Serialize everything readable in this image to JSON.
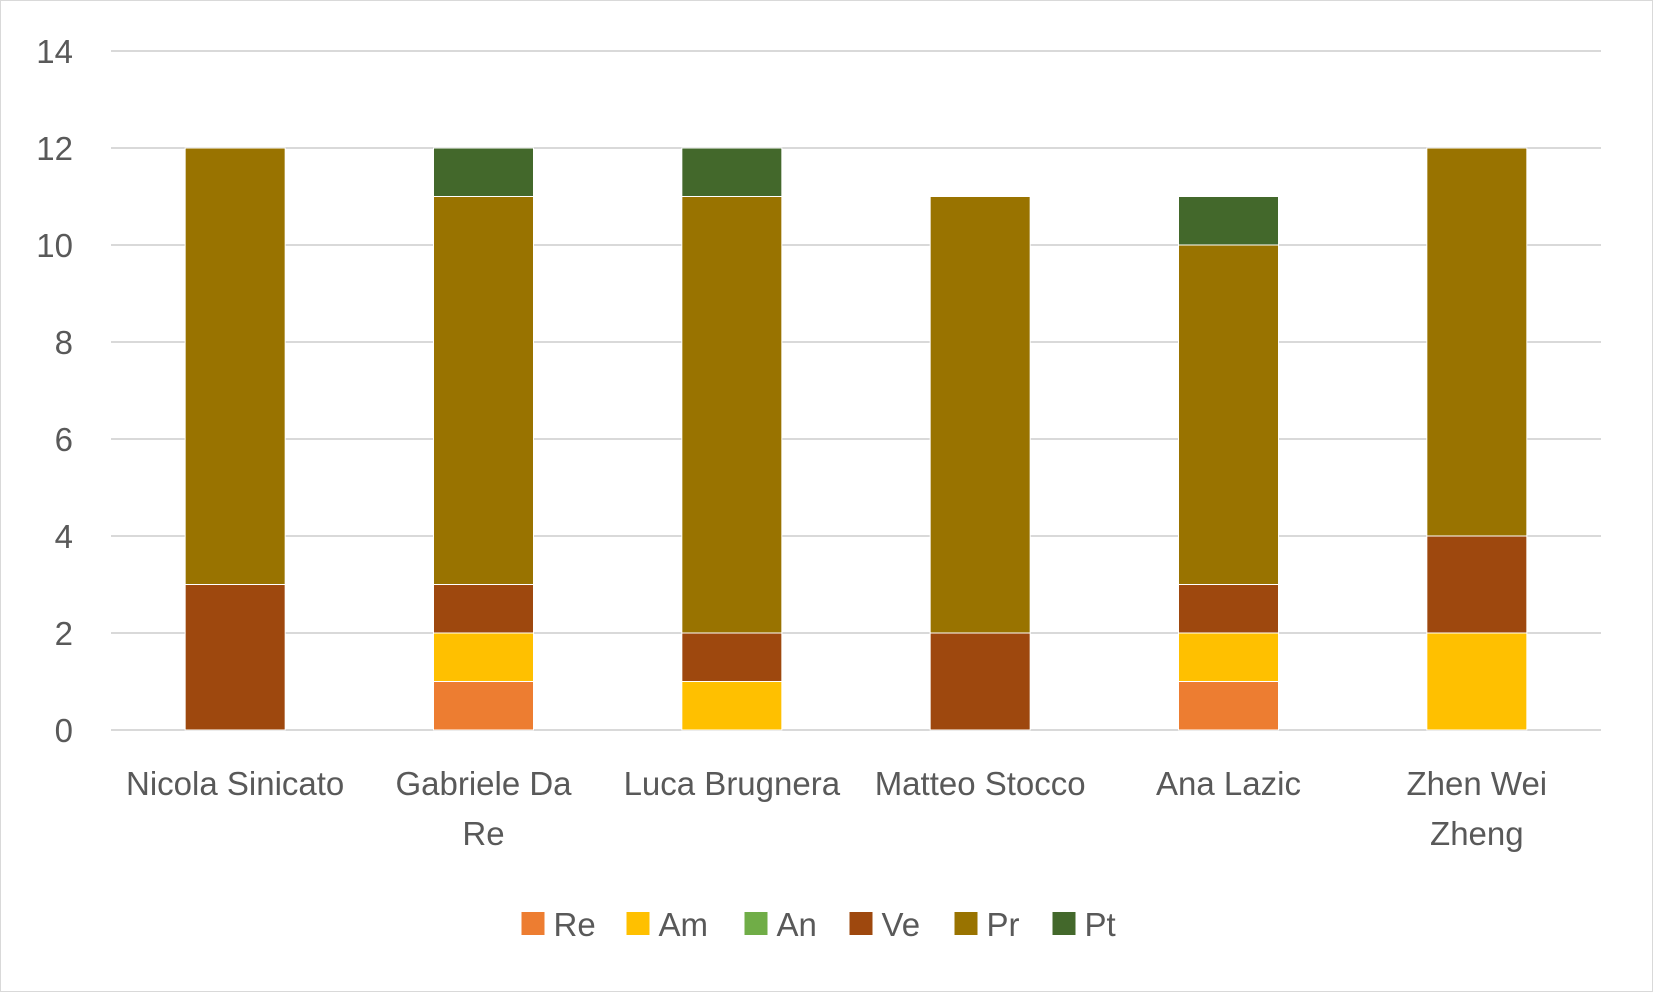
{
  "chart_data": {
    "type": "bar",
    "stacked": true,
    "categories": [
      [
        "Nicola Sinicato"
      ],
      [
        "Gabriele Da",
        "Re"
      ],
      [
        "Luca Brugnera"
      ],
      [
        "Matteo Stocco"
      ],
      [
        "Ana Lazic"
      ],
      [
        "Zhen Wei",
        "Zheng"
      ]
    ],
    "series": [
      {
        "name": "Re",
        "color": "#ED7D31",
        "values": [
          0,
          1,
          0,
          0,
          1,
          0
        ]
      },
      {
        "name": "Am",
        "color": "#FFC000",
        "values": [
          0,
          1,
          1,
          0,
          1,
          2
        ]
      },
      {
        "name": "An",
        "color": "#70AD47",
        "values": [
          0,
          0,
          0,
          0,
          0,
          0
        ]
      },
      {
        "name": "Ve",
        "color": "#9E480E",
        "values": [
          3,
          1,
          1,
          2,
          1,
          2
        ]
      },
      {
        "name": "Pr",
        "color": "#997300",
        "values": [
          9,
          8,
          9,
          9,
          7,
          8
        ]
      },
      {
        "name": "Pt",
        "color": "#43682B",
        "values": [
          0,
          1,
          1,
          0,
          1,
          0
        ]
      }
    ],
    "yticks": [
      0,
      2,
      4,
      6,
      8,
      10,
      12,
      14
    ],
    "ylim": [
      0,
      14
    ],
    "grid": true,
    "legend_position": "bottom",
    "gridline_color": "#d9d9d9"
  }
}
